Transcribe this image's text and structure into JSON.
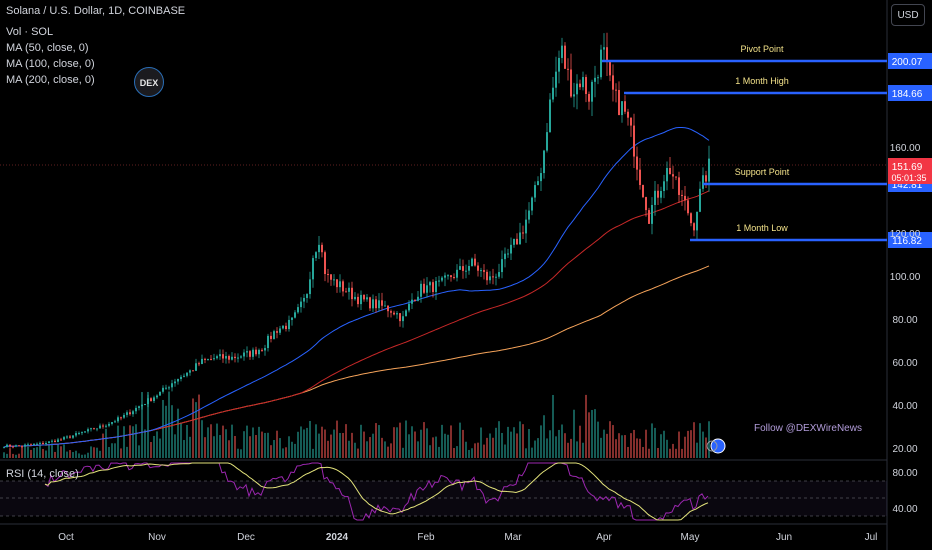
{
  "header": {
    "title": "Solana / U.S. Dollar, 1D, COINBASE",
    "volume": "Vol · SOL",
    "ma50": "MA (50, close, 0)",
    "ma100": "MA (100, close, 0)",
    "ma200": "MA (200, close, 0)"
  },
  "currency_button": "USD",
  "logo_text": "DEX",
  "watermark": "Follow @DEXWireNews",
  "rsi_label": "RSI (14, close)",
  "colors": {
    "up": "#26a69a",
    "down": "#ef5350",
    "ma50": "#2962ff",
    "ma100": "#c62828",
    "ma200": "#f5a35a",
    "level": "#2962ff",
    "level_label": "#f3e28a",
    "rsi": "#9c27b0",
    "rsi_ma": "#e2e27a"
  },
  "chart_data": {
    "type": "candlestick",
    "x_ticks": [
      "Oct",
      "Nov",
      "Dec",
      "2024",
      "Feb",
      "Mar",
      "Apr",
      "May",
      "Jun",
      "Jul"
    ],
    "y_ticks": [
      "20.00",
      "40.00",
      "60.00",
      "80.00",
      "100.00",
      "120.00",
      "160.00"
    ],
    "rsi_ticks": [
      "80.00",
      "40.00"
    ],
    "current_price": "151.69",
    "countdown": "05:01:35",
    "levels": [
      {
        "label": "Pivot Point",
        "value": "200.07"
      },
      {
        "label": "1 Month High",
        "value": "184.66"
      },
      {
        "label": "Support Point",
        "value": "142.81"
      },
      {
        "label": "1 Month Low",
        "value": "116.82"
      }
    ]
  }
}
